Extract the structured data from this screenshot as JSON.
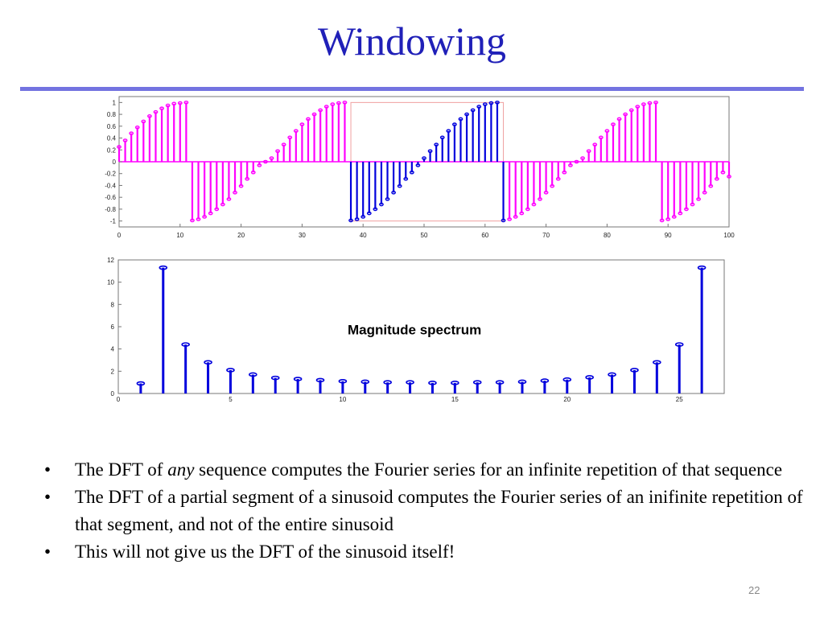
{
  "slide": {
    "title": "Windowing",
    "page_number": "22",
    "annotation": "Magnitude spectrum",
    "bullets": [
      {
        "before": "The DFT of ",
        "emphasis": "any",
        "after": " sequence computes the Fourier series for an infinite repetition of that sequence"
      },
      {
        "before": "The DFT of a partial segment of a sinusoid computes the Fourier series of an inifinite repetition of that segment, and not of the entire sinusoid",
        "emphasis": "",
        "after": ""
      },
      {
        "before": "This will not give us the DFT of the sinusoid itself!",
        "emphasis": "",
        "after": ""
      }
    ],
    "bullet_glyph": "•"
  },
  "colors": {
    "title": "#2020b8",
    "rule": "#7373e0",
    "magenta": "#ff00ff",
    "blue": "#0000dd"
  },
  "chart_data": [
    {
      "type": "stem",
      "title": "",
      "xlabel": "",
      "ylabel": "",
      "xlim": [
        0,
        100
      ],
      "ylim": [
        -1.1,
        1.1
      ],
      "xticks": [
        0,
        10,
        20,
        30,
        40,
        50,
        60,
        70,
        80,
        90,
        100
      ],
      "yticks": [
        1,
        0.8,
        0.6,
        0.4,
        0.2,
        0,
        -0.2,
        -0.4,
        -0.6,
        -0.8,
        -1
      ],
      "ytick_labels": [
        "1",
        "0.8",
        "0.6",
        "0.4",
        "0.2",
        "0",
        "-0.2",
        "-0.4",
        "-0.6",
        "-0.8",
        "-1"
      ],
      "period": 25.5,
      "segment": {
        "x_start": 38,
        "x_end": 63,
        "color": "blue"
      },
      "other_color": "magenta",
      "series": [
        {
          "x": [
            0,
            1,
            2,
            3,
            4,
            5,
            6,
            7,
            8,
            9,
            10,
            11,
            12,
            13,
            14,
            15,
            16,
            17,
            18,
            19,
            20,
            21,
            22,
            23,
            24,
            25,
            26,
            27,
            28,
            29,
            30,
            31,
            32,
            33,
            34,
            35,
            36,
            37,
            38,
            39,
            40,
            41,
            42,
            43,
            44,
            45,
            46,
            47,
            48,
            49,
            50,
            51,
            52,
            53,
            54,
            55,
            56,
            57,
            58,
            59,
            60,
            61,
            62,
            63,
            64,
            65,
            66,
            67,
            68,
            69,
            70,
            71,
            72,
            73,
            74,
            75,
            76,
            77,
            78,
            79,
            80,
            81,
            82,
            83,
            84,
            85,
            86,
            87,
            88,
            89,
            90,
            91,
            92,
            93,
            94,
            95,
            96,
            97,
            98,
            99,
            100
          ],
          "values": [
            0.25,
            0.36,
            0.48,
            0.58,
            0.68,
            0.77,
            0.84,
            0.9,
            0.95,
            0.98,
            0.99,
            1.0,
            -0.99,
            -0.97,
            -0.93,
            -0.87,
            -0.8,
            -0.72,
            -0.63,
            -0.52,
            -0.41,
            -0.29,
            -0.18,
            -0.06,
            0.0,
            0.06,
            0.18,
            0.29,
            0.41,
            0.52,
            0.63,
            0.72,
            0.8,
            0.87,
            0.93,
            0.97,
            0.99,
            1.0,
            -0.99,
            -0.97,
            -0.93,
            -0.87,
            -0.8,
            -0.72,
            -0.63,
            -0.52,
            -0.41,
            -0.29,
            -0.18,
            -0.06,
            0.06,
            0.18,
            0.29,
            0.41,
            0.52,
            0.63,
            0.72,
            0.8,
            0.87,
            0.93,
            0.97,
            0.99,
            1.0,
            -0.99,
            -0.97,
            -0.93,
            -0.87,
            -0.8,
            -0.72,
            -0.63,
            -0.52,
            -0.41,
            -0.29,
            -0.18,
            -0.06,
            0.0,
            0.06,
            0.18,
            0.29,
            0.41,
            0.52,
            0.63,
            0.72,
            0.8,
            0.87,
            0.93,
            0.97,
            0.99,
            1.0,
            -0.99,
            -0.97,
            -0.93,
            -0.87,
            -0.8,
            -0.72,
            -0.63,
            -0.52,
            -0.41,
            -0.29,
            -0.18,
            -0.25
          ]
        }
      ]
    },
    {
      "type": "stem",
      "title": "",
      "xlabel": "",
      "ylabel": "",
      "xlim": [
        0,
        27
      ],
      "ylim": [
        0,
        12
      ],
      "xticks": [
        0,
        5,
        10,
        15,
        20,
        25
      ],
      "yticks": [
        0,
        2,
        4,
        6,
        8,
        10,
        12
      ],
      "annotation": "Magnitude spectrum",
      "series": [
        {
          "x": [
            1,
            2,
            3,
            4,
            5,
            6,
            7,
            8,
            9,
            10,
            11,
            12,
            13,
            14,
            15,
            16,
            17,
            18,
            19,
            20,
            21,
            22,
            23,
            24,
            25,
            26
          ],
          "values": [
            0.9,
            11.3,
            4.4,
            2.8,
            2.1,
            1.7,
            1.4,
            1.3,
            1.2,
            1.1,
            1.05,
            1.0,
            1.0,
            0.95,
            0.95,
            1.0,
            1.0,
            1.05,
            1.15,
            1.25,
            1.45,
            1.7,
            2.1,
            2.8,
            4.4,
            11.3
          ]
        }
      ]
    }
  ]
}
